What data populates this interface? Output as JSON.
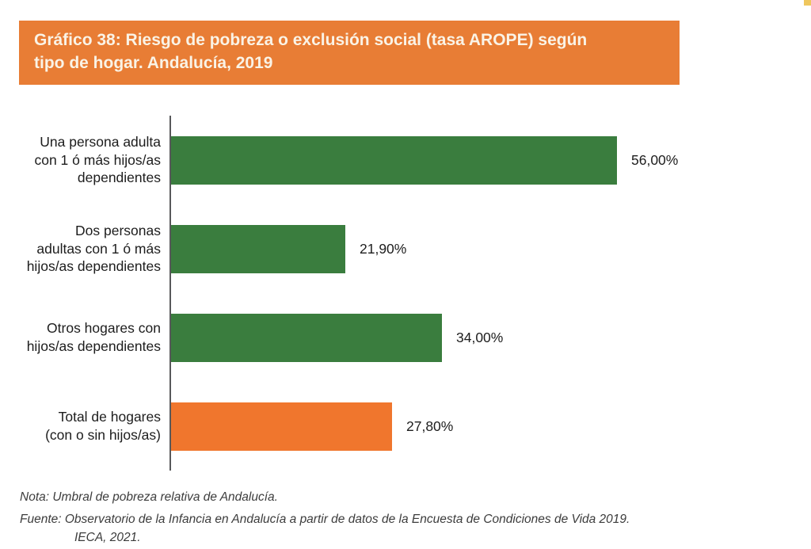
{
  "banner": {
    "title_line1": "Gráfico 38: Riesgo de pobreza o exclusión social (tasa AROPE) según",
    "title_line2": "tipo de hogar. Andalucía, 2019",
    "bg_color": "#E87D35",
    "text_color": "#FAF3E6"
  },
  "chart_data": {
    "type": "bar",
    "orientation": "horizontal",
    "title": "Gráfico 38: Riesgo de pobreza o exclusión social (tasa AROPE) según tipo de hogar. Andalucía, 2019",
    "categories": [
      "Una persona adulta\ncon 1 ó más hijos/as\ndependientes",
      "Dos personas\nadultas con 1 ó más\nhijos/as dependientes",
      "Otros hogares con\nhijos/as dependientes",
      "Total de hogares\n(con o sin hijos/as)"
    ],
    "values": [
      56.0,
      21.9,
      34.0,
      27.8
    ],
    "value_labels": [
      "56,00%",
      "21,90%",
      "34,00%",
      "27,80%"
    ],
    "bar_colors": [
      "#3A7D3E",
      "#3A7D3E",
      "#3A7D3E",
      "#F0762D"
    ],
    "xlabel": "",
    "ylabel": "",
    "xlim": [
      0,
      60
    ],
    "grid": false,
    "legend": false,
    "axis_color": "#58595B",
    "value_label_position": "right-of-bar"
  },
  "footer": {
    "note": "Nota: Umbral de pobreza relativa de Andalucía.",
    "source_line1": "Fuente: Observatorio de la Infancia en Andalucía a partir de datos de la Encuesta de Condiciones de Vida 2019.",
    "source_line2": "IECA, 2021."
  },
  "decoration": {
    "corner_dot_color": "#EFC75E"
  }
}
